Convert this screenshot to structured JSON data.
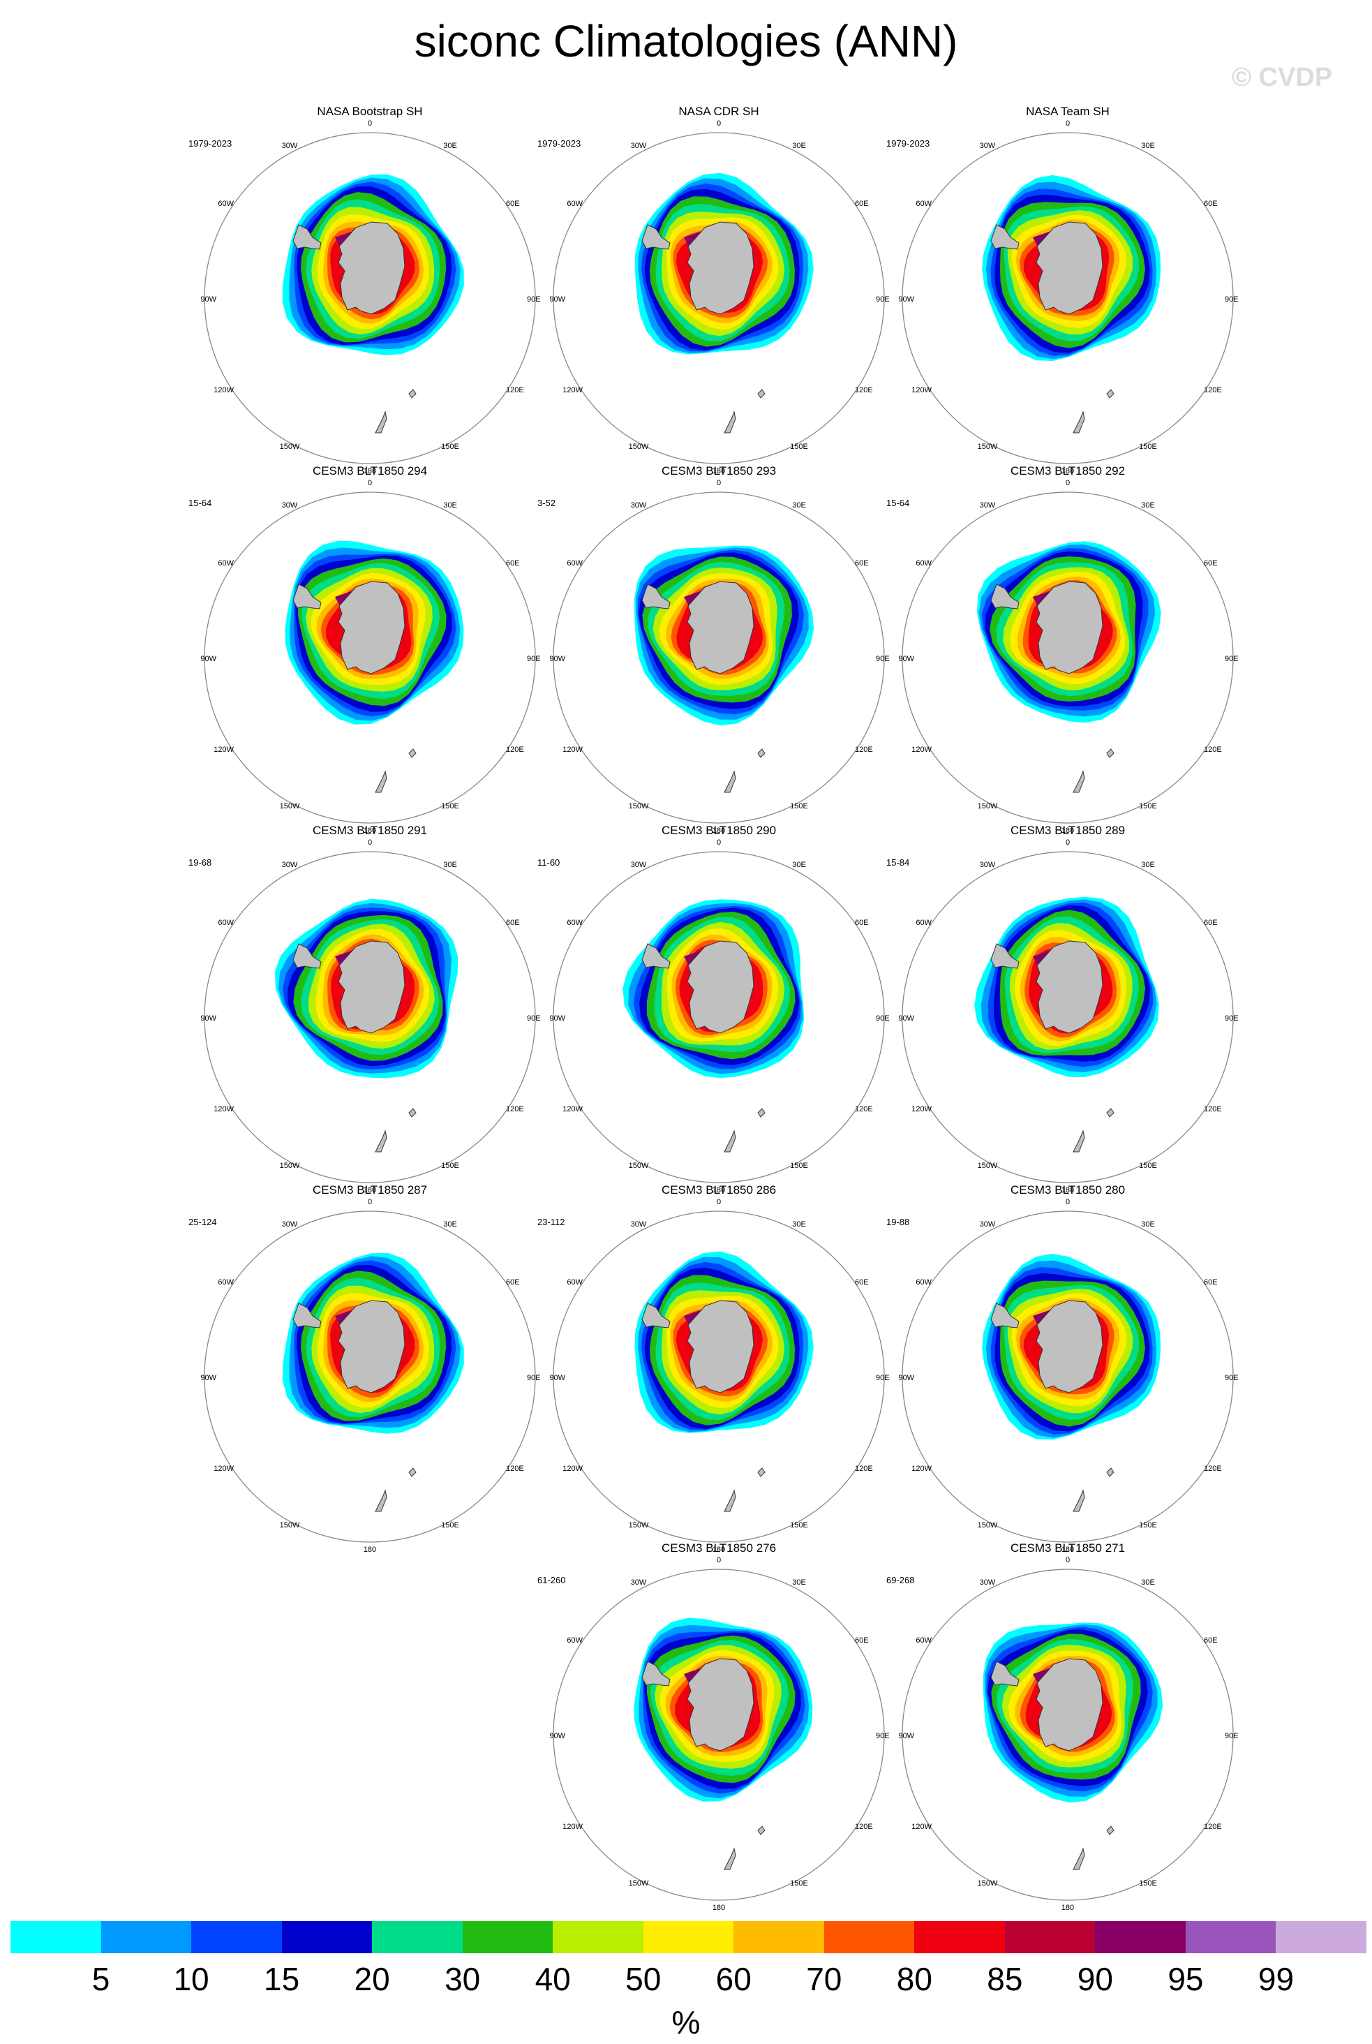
{
  "title": "siconc Climatologies (ANN)",
  "watermark": "© CVDP",
  "map_labels": {
    "lon_top": "0",
    "lon_30e": "30E",
    "lon_60e": "60E",
    "lon_90e": "90E",
    "lon_120e": "120E",
    "lon_150e": "150E",
    "lon_bottom": "180",
    "lon_150w": "150W",
    "lon_120w": "120W",
    "lon_90w": "90W",
    "lon_60w": "60W",
    "lon_30w": "30W"
  },
  "panels": [
    {
      "title": "NASA Bootstrap SH",
      "years": "1979-2023"
    },
    {
      "title": "NASA CDR SH",
      "years": "1979-2023"
    },
    {
      "title": "NASA Team SH",
      "years": "1979-2023"
    },
    {
      "title": "CESM3 BLT1850 294",
      "years": "15-64"
    },
    {
      "title": "CESM3 BLT1850 293",
      "years": "3-52"
    },
    {
      "title": "CESM3 BLT1850 292",
      "years": "15-64"
    },
    {
      "title": "CESM3 BLT1850 291",
      "years": "19-68"
    },
    {
      "title": "CESM3 BLT1850 290",
      "years": "11-60"
    },
    {
      "title": "CESM3 BLT1850 289",
      "years": "15-84"
    },
    {
      "title": "CESM3 BLT1850 287",
      "years": "25-124"
    },
    {
      "title": "CESM3 BLT1850 286",
      "years": "23-112"
    },
    {
      "title": "CESM3 BLT1850 280",
      "years": "19-88"
    },
    {
      "title": "CESM3 BLT1850 276",
      "years": "61-260"
    },
    {
      "title": "CESM3 BLT1850 271",
      "years": "69-268"
    }
  ],
  "colorbar": {
    "units": "%",
    "ticks": [
      "5",
      "10",
      "15",
      "20",
      "30",
      "40",
      "50",
      "60",
      "70",
      "80",
      "85",
      "90",
      "95",
      "99"
    ],
    "colors": [
      "#00ffff",
      "#0099ff",
      "#0044ff",
      "#0000cc",
      "#00dd88",
      "#22bb11",
      "#bbee00",
      "#ffee00",
      "#ffbb00",
      "#ff5500",
      "#ee0011",
      "#bb0033",
      "#880066",
      "#9955bb",
      "#ccaadd"
    ]
  },
  "land_color": "#c0c0c0"
}
